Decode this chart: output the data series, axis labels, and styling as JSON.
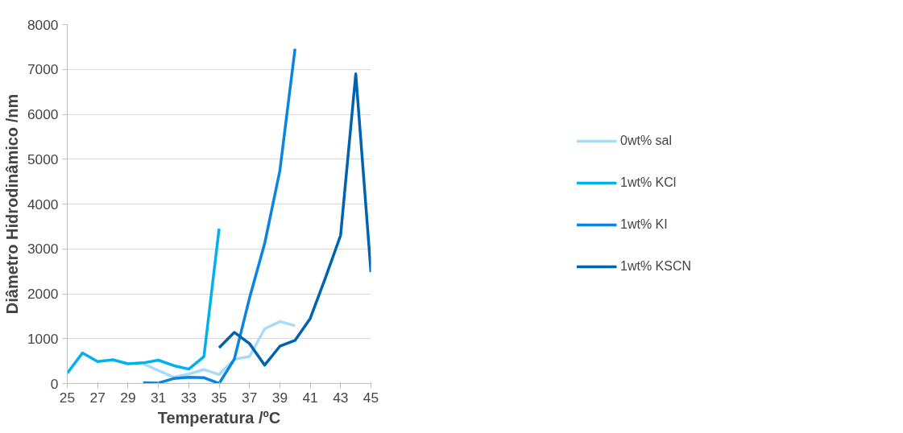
{
  "chart_data": {
    "type": "line",
    "xlabel": "Temperatura /ºC",
    "ylabel": "Diâmetro Hidrodinâmico /nm",
    "xlim": [
      25,
      45
    ],
    "xticks": [
      25,
      27,
      29,
      31,
      33,
      35,
      37,
      39,
      41,
      43,
      45
    ],
    "ylim": [
      0,
      8000
    ],
    "yticks": [
      0,
      1000,
      2000,
      3000,
      4000,
      5000,
      6000,
      7000,
      8000
    ],
    "grid": "y",
    "legend": "right",
    "line_style": "solid",
    "series": [
      {
        "name": "0wt% sal",
        "color": "#a6dcf7",
        "x": [
          30,
          31,
          32,
          33,
          34,
          35,
          36,
          37,
          38,
          39,
          40
        ],
        "values": [
          440,
          290,
          140,
          210,
          310,
          200,
          540,
          600,
          1220,
          1380,
          1290
        ]
      },
      {
        "name": "1wt% KCl",
        "color": "#00b0f0",
        "x": [
          25,
          26,
          27,
          28,
          29,
          30,
          31,
          32,
          33,
          34,
          35
        ],
        "values": [
          230,
          680,
          490,
          530,
          440,
          460,
          520,
          400,
          320,
          600,
          3450
        ]
      },
      {
        "name": "1wt% KI",
        "color": "#0a84e0",
        "x": [
          30,
          31,
          32,
          33,
          34,
          35,
          36,
          37,
          38,
          39,
          40
        ],
        "values": [
          20,
          10,
          110,
          140,
          130,
          0,
          540,
          1900,
          3120,
          4740,
          7460
        ]
      },
      {
        "name": "1wt% KSCN",
        "color": "#0063b0",
        "x": [
          35,
          36,
          37,
          38,
          39,
          40,
          41,
          42,
          43,
          44,
          45
        ],
        "values": [
          800,
          1140,
          890,
          410,
          830,
          960,
          1450,
          2350,
          3300,
          6900,
          2480
        ]
      }
    ]
  }
}
